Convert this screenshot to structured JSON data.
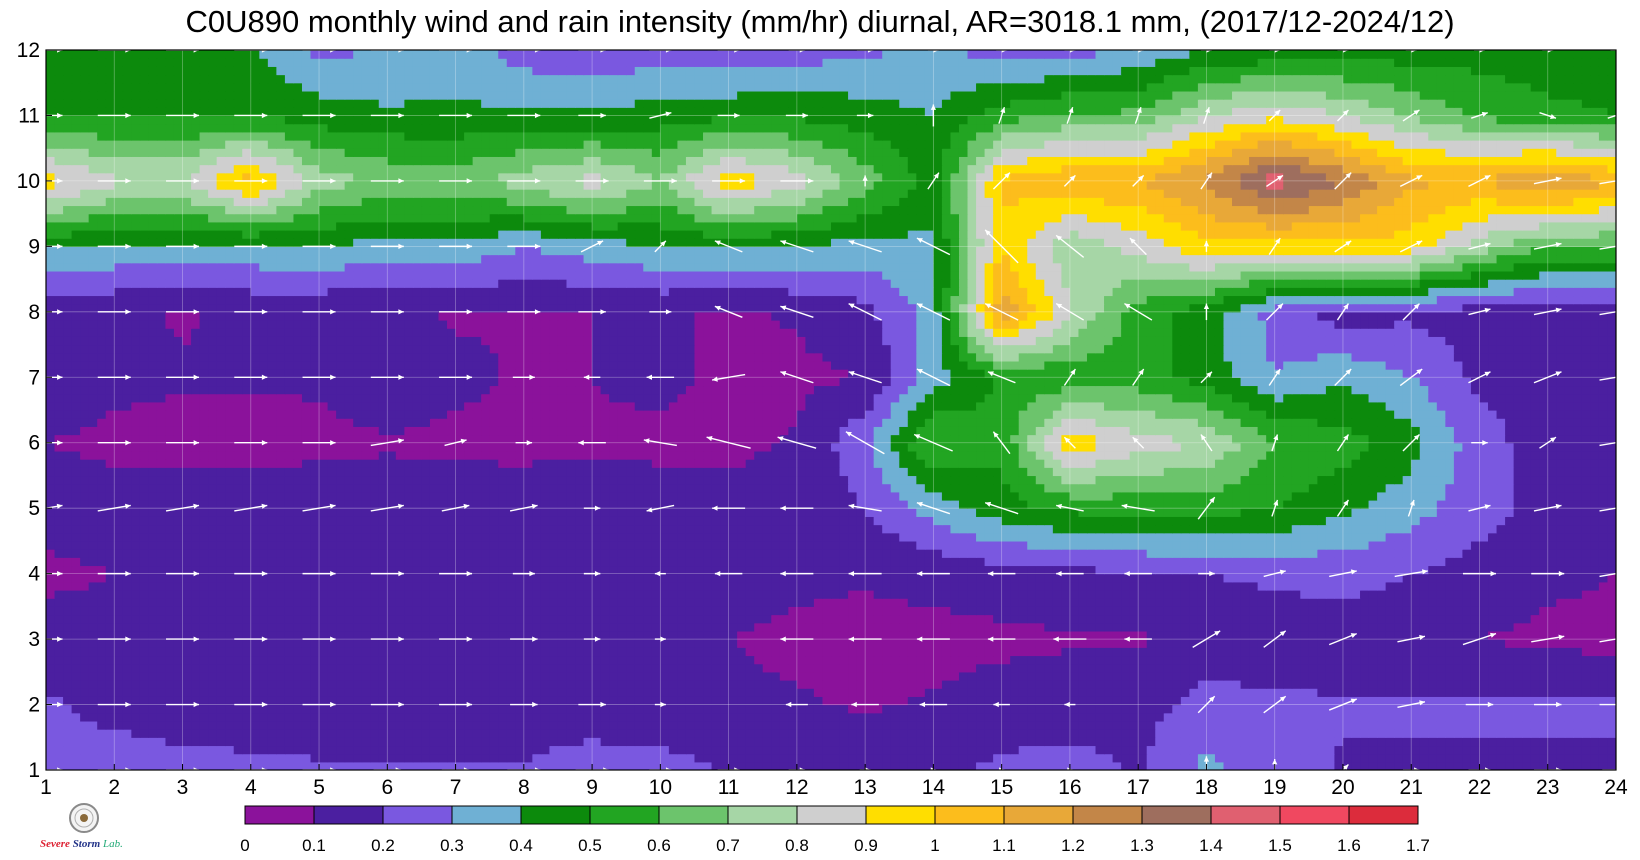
{
  "title": "C0U890 monthly wind and rain intensity (mm/hr) diurnal, AR=3018.1 mm, (2017/12-2024/12)",
  "logo": {
    "text_a": "Severe",
    "text_b": "Storm",
    "text_c": "Lab."
  },
  "chart_data": {
    "type": "heatmap",
    "title": "C0U890 monthly wind and rain intensity (mm/hr) diurnal, AR=3018.1 mm, (2017/12-2024/12)",
    "xlabel": "",
    "ylabel": "",
    "x_ticks": [
      "1",
      "2",
      "3",
      "4",
      "5",
      "6",
      "7",
      "8",
      "9",
      "10",
      "11",
      "12",
      "13",
      "14",
      "15",
      "16",
      "17",
      "18",
      "19",
      "20",
      "21",
      "22",
      "23",
      "24"
    ],
    "y_ticks": [
      "1",
      "2",
      "3",
      "4",
      "5",
      "6",
      "7",
      "8",
      "9",
      "10",
      "11",
      "12"
    ],
    "xlim": [
      1,
      24
    ],
    "ylim": [
      1,
      12
    ],
    "grid": true,
    "colorbar": {
      "position": "bottom",
      "levels": [
        "0",
        "0.1",
        "0.2",
        "0.3",
        "0.4",
        "0.5",
        "0.6",
        "0.7",
        "0.8",
        "0.9",
        "1",
        "1.1",
        "1.2",
        "1.3",
        "1.4",
        "1.5",
        "1.6",
        "1.7"
      ],
      "colors": [
        "#8b129b",
        "#4b1fa0",
        "#7a58e0",
        "#6fb0d4",
        "#0c8a0c",
        "#22a522",
        "#6cc46c",
        "#a6d6a6",
        "#cfcfcf",
        "#ffde00",
        "#fcbd1c",
        "#e8a838",
        "#c38648",
        "#9e6e5e",
        "#e06070",
        "#f04860",
        "#dc2c3c"
      ]
    },
    "x": [
      1,
      2,
      3,
      4,
      5,
      6,
      7,
      8,
      9,
      10,
      11,
      12,
      13,
      14,
      15,
      16,
      17,
      18,
      19,
      20,
      21,
      22,
      23,
      24
    ],
    "y": [
      1,
      2,
      3,
      4,
      5,
      6,
      7,
      8,
      9,
      10,
      11,
      12
    ],
    "values": [
      [
        0.22,
        0.23,
        0.22,
        0.22,
        0.21,
        0.21,
        0.21,
        0.21,
        0.25,
        0.24,
        0.19,
        0.18,
        0.18,
        0.18,
        0.22,
        0.24,
        0.19,
        0.33,
        0.24,
        0.19,
        0.19,
        0.19,
        0.19,
        0.19
      ],
      [
        0.21,
        0.18,
        0.17,
        0.15,
        0.15,
        0.15,
        0.14,
        0.14,
        0.14,
        0.13,
        0.12,
        0.11,
        0.09,
        0.11,
        0.14,
        0.15,
        0.16,
        0.24,
        0.22,
        0.21,
        0.21,
        0.21,
        0.21,
        0.21
      ],
      [
        0.14,
        0.13,
        0.13,
        0.12,
        0.12,
        0.12,
        0.12,
        0.12,
        0.12,
        0.12,
        0.1,
        0.08,
        0.07,
        0.07,
        0.08,
        0.09,
        0.09,
        0.13,
        0.14,
        0.14,
        0.13,
        0.1,
        0.08,
        0.07
      ],
      [
        0.08,
        0.1,
        0.12,
        0.13,
        0.14,
        0.14,
        0.14,
        0.14,
        0.14,
        0.14,
        0.14,
        0.12,
        0.11,
        0.13,
        0.15,
        0.17,
        0.19,
        0.2,
        0.22,
        0.24,
        0.2,
        0.16,
        0.12,
        0.1
      ],
      [
        0.14,
        0.14,
        0.14,
        0.14,
        0.15,
        0.15,
        0.15,
        0.14,
        0.14,
        0.14,
        0.13,
        0.13,
        0.2,
        0.34,
        0.46,
        0.52,
        0.54,
        0.54,
        0.5,
        0.42,
        0.34,
        0.24,
        0.16,
        0.18
      ],
      [
        0.1,
        0.08,
        0.07,
        0.07,
        0.08,
        0.09,
        0.08,
        0.08,
        0.09,
        0.08,
        0.08,
        0.11,
        0.28,
        0.62,
        0.52,
        0.98,
        0.84,
        0.8,
        0.6,
        0.55,
        0.44,
        0.24,
        0.15,
        0.16
      ],
      [
        0.16,
        0.12,
        0.11,
        0.11,
        0.11,
        0.16,
        0.12,
        0.09,
        0.1,
        0.12,
        0.08,
        0.08,
        0.1,
        0.35,
        0.52,
        0.52,
        0.55,
        0.45,
        0.3,
        0.38,
        0.3,
        0.18,
        0.18,
        0.18
      ],
      [
        0.12,
        0.12,
        0.09,
        0.12,
        0.11,
        0.12,
        0.09,
        0.1,
        0.1,
        0.11,
        0.09,
        0.11,
        0.17,
        0.35,
        1.18,
        0.82,
        0.55,
        0.45,
        0.26,
        0.15,
        0.18,
        0.15,
        0.12,
        0.12
      ],
      [
        0.42,
        0.38,
        0.38,
        0.38,
        0.4,
        0.36,
        0.38,
        0.3,
        0.35,
        0.4,
        0.42,
        0.4,
        0.36,
        0.38,
        0.98,
        0.72,
        0.84,
        0.98,
        0.95,
        0.98,
        0.95,
        0.75,
        0.6,
        0.6
      ],
      [
        0.95,
        0.82,
        0.8,
        1.05,
        0.75,
        0.68,
        0.66,
        0.75,
        0.84,
        0.7,
        0.98,
        0.85,
        0.65,
        0.45,
        1.02,
        1.1,
        1.1,
        1.22,
        1.45,
        1.3,
        1.12,
        1.1,
        1.22,
        1.1
      ],
      [
        0.5,
        0.48,
        0.48,
        0.5,
        0.45,
        0.42,
        0.42,
        0.42,
        0.42,
        0.45,
        0.48,
        0.48,
        0.45,
        0.4,
        0.55,
        0.62,
        0.62,
        0.8,
        0.88,
        0.8,
        0.68,
        0.58,
        0.52,
        0.5
      ],
      [
        0.45,
        0.45,
        0.42,
        0.42,
        0.28,
        0.3,
        0.35,
        0.25,
        0.22,
        0.25,
        0.22,
        0.25,
        0.28,
        0.32,
        0.25,
        0.25,
        0.32,
        0.4,
        0.42,
        0.45,
        0.45,
        0.46,
        0.45,
        0.46
      ]
    ],
    "wind_vectors": {
      "u": [
        [
          0.6,
          0.6,
          0.6,
          0.6,
          0.6,
          0.5,
          0.5,
          0.6,
          0.6,
          0.4,
          0.4,
          0.3,
          0.2,
          0.1,
          0.1,
          0.1,
          0.0,
          0.0,
          0.0,
          0.2,
          0.3,
          0.4,
          0.5,
          0.5
        ],
        [
          0.6,
          0.6,
          0.6,
          0.6,
          0.6,
          0.6,
          0.6,
          0.5,
          0.5,
          0.2,
          0.0,
          -0.4,
          -0.5,
          -0.5,
          -0.3,
          -0.2,
          0.0,
          0.3,
          0.4,
          0.5,
          0.5,
          0.5,
          0.5,
          0.6
        ],
        [
          0.6,
          0.6,
          0.6,
          0.6,
          0.6,
          0.6,
          0.6,
          0.5,
          0.3,
          0.2,
          0.0,
          -0.6,
          -0.6,
          -0.6,
          -0.5,
          -0.6,
          -0.5,
          0.5,
          0.4,
          0.5,
          0.5,
          0.6,
          0.6,
          0.6
        ],
        [
          0.6,
          0.6,
          0.6,
          0.6,
          0.6,
          0.6,
          0.6,
          0.4,
          0.3,
          -0.2,
          -0.5,
          -0.6,
          -0.6,
          -0.6,
          -0.5,
          -0.5,
          -0.5,
          0.3,
          0.4,
          0.5,
          0.6,
          0.6,
          0.6,
          0.6
        ],
        [
          0.6,
          0.6,
          0.6,
          0.6,
          0.6,
          0.6,
          0.5,
          0.5,
          0.3,
          -0.5,
          -0.6,
          -0.6,
          -0.6,
          -0.6,
          -0.6,
          -0.5,
          -0.6,
          0.3,
          0.1,
          0.2,
          0.1,
          0.4,
          0.5,
          0.6
        ],
        [
          0.6,
          0.6,
          0.6,
          0.6,
          0.6,
          0.6,
          0.4,
          0.3,
          -0.5,
          -0.6,
          -0.8,
          -0.7,
          -0.7,
          -0.7,
          -0.3,
          -0.2,
          -0.2,
          -0.2,
          0.1,
          0.2,
          0.3,
          0.3,
          0.3,
          0.6
        ],
        [
          0.6,
          0.6,
          0.6,
          0.6,
          0.6,
          0.6,
          0.6,
          0.4,
          -0.3,
          -0.5,
          -0.6,
          -0.6,
          -0.6,
          -0.6,
          -0.5,
          0.2,
          0.2,
          0.2,
          0.2,
          0.3,
          0.4,
          0.4,
          0.5,
          0.6
        ],
        [
          0.6,
          0.6,
          0.6,
          0.6,
          0.6,
          0.6,
          0.6,
          0.6,
          0.5,
          0.4,
          -0.5,
          -0.6,
          -0.6,
          -0.6,
          -0.6,
          -0.5,
          -0.5,
          0.0,
          0.3,
          0.2,
          0.3,
          0.4,
          0.5,
          0.6
        ],
        [
          0.6,
          0.6,
          0.6,
          0.6,
          0.6,
          0.6,
          0.6,
          0.6,
          0.4,
          0.2,
          -0.5,
          -0.6,
          -0.6,
          -0.6,
          -0.6,
          -0.5,
          -0.3,
          0.0,
          0.2,
          0.3,
          0.4,
          0.4,
          0.5,
          0.6
        ],
        [
          0.6,
          0.6,
          0.6,
          0.6,
          0.6,
          0.6,
          0.6,
          0.6,
          0.6,
          0.6,
          0.6,
          0.6,
          0.0,
          0.2,
          0.3,
          0.2,
          0.2,
          0.2,
          0.3,
          0.3,
          0.4,
          0.4,
          0.5,
          0.6
        ],
        [
          0.6,
          0.6,
          0.6,
          0.6,
          0.6,
          0.6,
          0.6,
          0.6,
          0.5,
          0.4,
          0.4,
          0.4,
          0.3,
          0.0,
          0.1,
          0.1,
          0.1,
          0.1,
          0.2,
          0.2,
          0.3,
          0.3,
          0.3,
          0.3
        ],
        [
          0.6,
          0.6,
          0.6,
          0.6,
          0.6,
          0.6,
          0.6,
          0.6,
          0.5,
          0.4,
          0.4,
          0.3,
          0.3,
          0.2,
          0.2,
          0.2,
          0.2,
          0.2,
          0.2,
          0.2,
          0.2,
          0.2,
          0.2,
          0.2
        ]
      ],
      "v": [
        [
          0.0,
          0.0,
          0.0,
          0.0,
          0.0,
          0.0,
          0.0,
          0.0,
          0.0,
          0.0,
          0.0,
          0.0,
          0.0,
          0.0,
          0.0,
          0.0,
          0.0,
          0.5,
          0.4,
          0.2,
          0.0,
          0.0,
          0.0,
          0.0
        ],
        [
          0.0,
          0.0,
          0.0,
          0.0,
          0.0,
          0.0,
          0.0,
          0.0,
          0.0,
          0.0,
          0.0,
          0.0,
          0.0,
          0.0,
          0.0,
          0.0,
          0.0,
          0.3,
          0.3,
          0.2,
          0.1,
          0.0,
          0.0,
          0.0
        ],
        [
          0.0,
          0.0,
          0.0,
          0.0,
          0.0,
          0.0,
          0.0,
          0.0,
          0.0,
          0.0,
          0.0,
          0.0,
          0.0,
          0.0,
          0.0,
          0.0,
          0.0,
          0.3,
          0.3,
          0.2,
          0.1,
          0.2,
          0.1,
          0.1
        ],
        [
          0.0,
          0.0,
          0.0,
          0.0,
          0.0,
          0.0,
          0.0,
          0.0,
          0.0,
          0.0,
          0.0,
          0.0,
          0.0,
          0.0,
          0.0,
          0.0,
          0.0,
          0.0,
          0.1,
          0.1,
          0.1,
          0.0,
          0.0,
          0.1
        ],
        [
          0.1,
          0.1,
          0.1,
          0.1,
          0.1,
          0.1,
          0.1,
          0.1,
          0.0,
          -0.1,
          0.0,
          0.0,
          0.1,
          0.2,
          0.2,
          0.1,
          0.1,
          0.4,
          0.3,
          0.3,
          0.3,
          0.1,
          0.1,
          0.1
        ],
        [
          0.0,
          0.0,
          0.0,
          0.0,
          0.0,
          0.1,
          0.1,
          0.0,
          0.0,
          0.1,
          0.2,
          0.2,
          0.4,
          0.3,
          0.4,
          0.2,
          0.2,
          0.3,
          0.3,
          0.3,
          0.3,
          0.0,
          0.2,
          0.1
        ],
        [
          0.0,
          0.0,
          0.0,
          0.0,
          0.0,
          0.0,
          0.0,
          0.0,
          0.0,
          0.0,
          -0.1,
          0.2,
          0.2,
          0.3,
          0.2,
          0.3,
          0.3,
          0.2,
          0.3,
          0.3,
          0.3,
          0.2,
          0.2,
          0.1
        ],
        [
          0.0,
          0.0,
          0.0,
          0.0,
          0.0,
          0.0,
          0.0,
          0.0,
          0.0,
          0.0,
          0.2,
          0.2,
          0.3,
          0.3,
          0.3,
          0.3,
          0.3,
          0.3,
          0.3,
          0.3,
          0.3,
          0.1,
          0.1,
          0.1
        ],
        [
          0.0,
          0.0,
          0.0,
          0.0,
          0.0,
          0.0,
          0.0,
          0.0,
          0.2,
          0.2,
          0.2,
          0.2,
          0.2,
          0.3,
          0.6,
          0.4,
          0.3,
          0.2,
          0.3,
          0.2,
          0.2,
          0.1,
          0.1,
          0.1
        ],
        [
          0.0,
          0.0,
          0.0,
          0.0,
          0.0,
          0.0,
          0.0,
          0.0,
          0.0,
          0.0,
          0.0,
          0.0,
          0.2,
          0.3,
          0.3,
          0.2,
          0.2,
          0.3,
          0.2,
          0.3,
          0.2,
          0.2,
          0.1,
          0.1
        ],
        [
          0.0,
          0.0,
          0.0,
          0.0,
          0.0,
          0.0,
          0.0,
          0.0,
          0.0,
          0.1,
          0.0,
          0.0,
          0.0,
          0.4,
          0.3,
          0.3,
          0.3,
          0.3,
          0.2,
          0.2,
          0.2,
          0.1,
          -0.1,
          0.1
        ],
        [
          0.0,
          0.0,
          0.0,
          0.0,
          0.0,
          0.0,
          0.0,
          0.0,
          0.0,
          0.0,
          0.0,
          0.0,
          0.0,
          0.0,
          0.0,
          0.0,
          0.0,
          0.0,
          0.0,
          0.0,
          0.0,
          0.0,
          0.0,
          0.0
        ]
      ]
    }
  }
}
